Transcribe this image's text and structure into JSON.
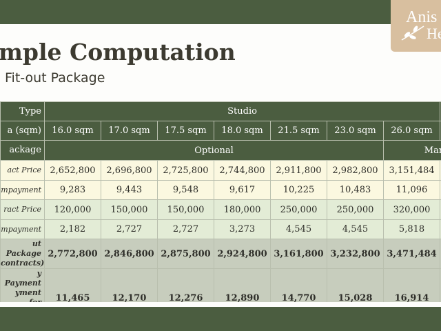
{
  "logo": {
    "lines": [
      "Anis",
      "He"
    ]
  },
  "header": {
    "title": "mple Computation",
    "subtitle": "Fit-out Package"
  },
  "table": {
    "rows": [
      {
        "label": "Type",
        "cells": [
          "Studio"
        ]
      },
      {
        "label": "a (sqm)",
        "cells": [
          "16.0 sqm",
          "17.0 sqm",
          "17.5 sqm",
          "18.0 sqm",
          "21.5 sqm",
          "23.0 sqm",
          "26.0 sqm"
        ]
      },
      {
        "label": "ackage",
        "cells": [
          "Optional",
          "Manda"
        ]
      },
      {
        "label": "act Price",
        "cells": [
          "2,652,800",
          "2,696,800",
          "2,725,800",
          "2,744,800",
          "2,911,800",
          "2,982,800",
          "3,151,484"
        ]
      },
      {
        "label": "mpayment",
        "cells": [
          "9,283",
          "9,443",
          "9,548",
          "9,617",
          "10,225",
          "10,483",
          "11,096"
        ]
      },
      {
        "label": "ract Price",
        "cells": [
          "120,000",
          "150,000",
          "150,000",
          "180,000",
          "250,000",
          "250,000",
          "320,000"
        ]
      },
      {
        "label": "mpayment",
        "cells": [
          "2,182",
          "2,727",
          "2,727",
          "3,273",
          "4,545",
          "4,545",
          "5,818"
        ]
      },
      {
        "label": "ut Package\ncontracts)",
        "cells": [
          "2,772,800",
          "2,846,800",
          "2,875,800",
          "2,924,800",
          "3,161,800",
          "3,232,800",
          "3,471,484"
        ]
      },
      {
        "label": "y Payment\nyment for\nt package)",
        "cells": [
          "11,465",
          "12,170",
          "12,276",
          "12,890",
          "14,770",
          "15,028",
          "16,914"
        ]
      }
    ]
  }
}
